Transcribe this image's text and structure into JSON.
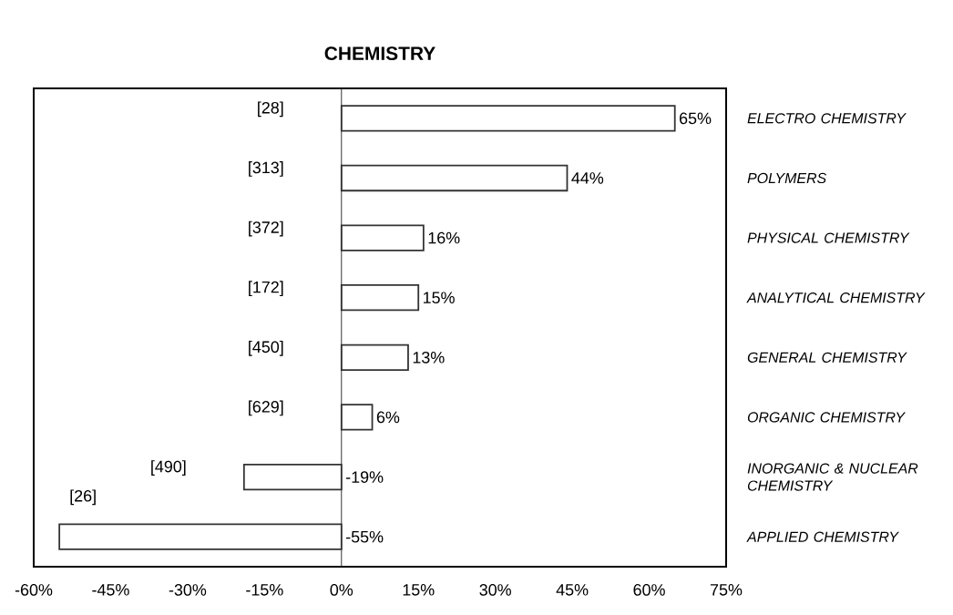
{
  "chart_data": {
    "type": "bar",
    "orientation": "horizontal",
    "title": "CHEMISTRY",
    "categories": [
      "ELECTRO CHEMISTRY",
      "POLYMERS",
      "PHYSICAL CHEMISTRY",
      "ANALYTICAL CHEMISTRY",
      "GENERAL CHEMISTRY",
      "ORGANIC CHEMISTRY",
      "INORGANIC & NUCLEAR CHEMISTRY",
      "APPLIED CHEMISTRY"
    ],
    "values": [
      65,
      44,
      16,
      15,
      13,
      6,
      -19,
      -55
    ],
    "value_labels": [
      "65%",
      "44%",
      "16%",
      "15%",
      "13%",
      "6%",
      "-19%",
      "-55%"
    ],
    "color": "#ffffff",
    "xlim": [
      -60,
      75
    ],
    "xticks": [
      {
        "value": -60,
        "label": "-60%"
      },
      {
        "value": -45,
        "label": "-45%"
      },
      {
        "value": -30,
        "label": "-30%"
      },
      {
        "value": -15,
        "label": "-15%"
      },
      {
        "value": 0,
        "label": "0%"
      },
      {
        "value": 15,
        "label": "15%"
      },
      {
        "value": 30,
        "label": "30%"
      },
      {
        "value": 45,
        "label": "45%"
      },
      {
        "value": 60,
        "label": "60%"
      },
      {
        "value": 75,
        "label": "75%"
      }
    ],
    "annotations": [
      "[28]",
      "[313]",
      "[372]",
      "[172]",
      "[450]",
      "[629]",
      "[490]",
      "[26]"
    ]
  }
}
